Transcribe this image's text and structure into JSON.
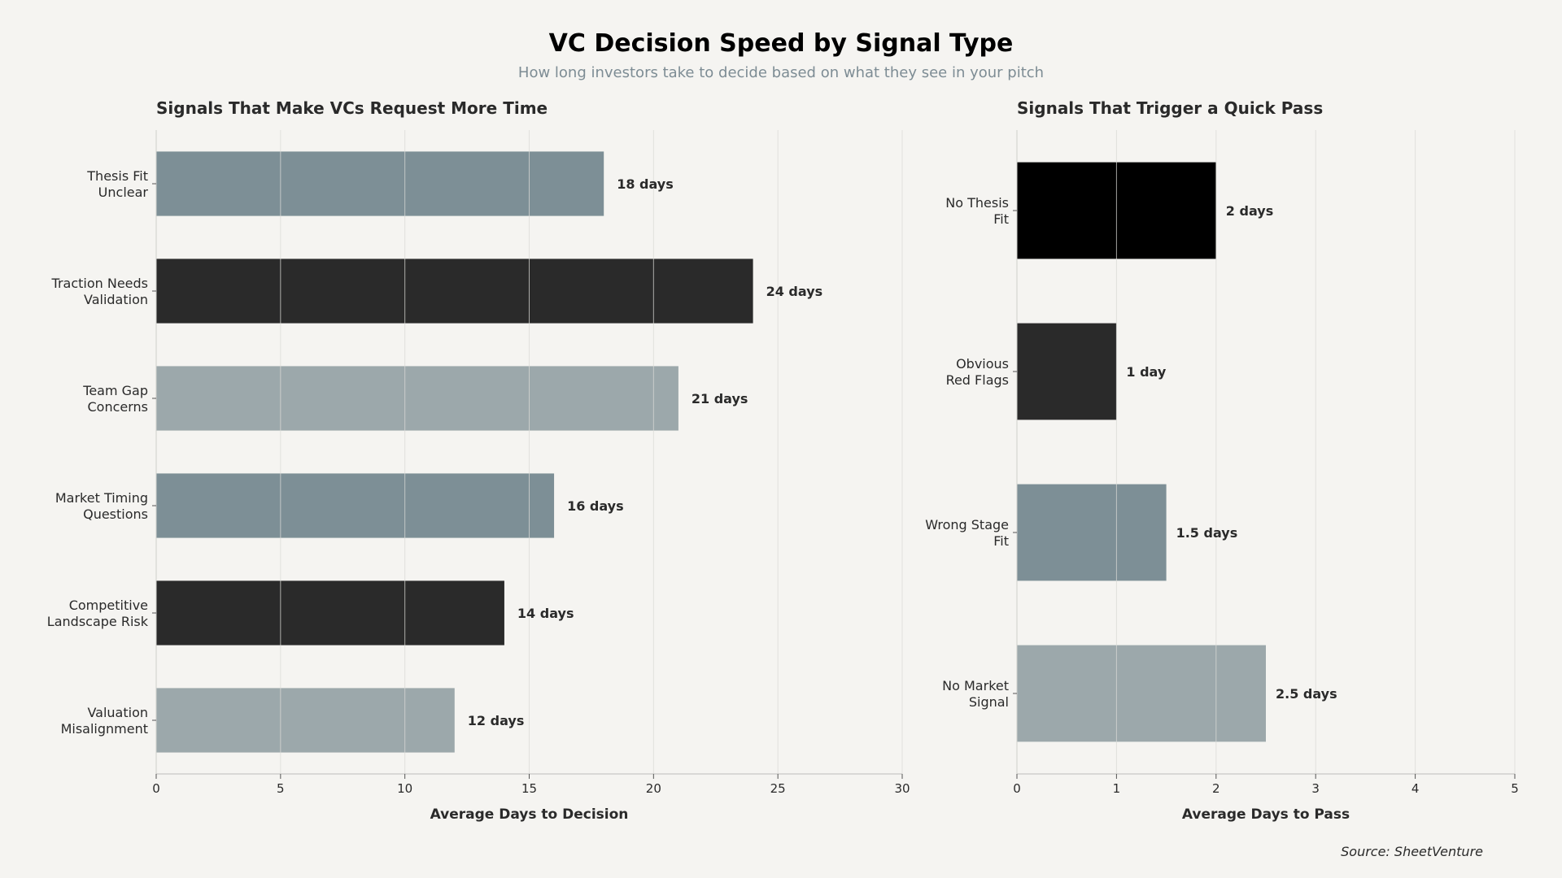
{
  "title": "VC Decision Speed by Signal Type",
  "subtitle": "How long investors take to decide based on what they see in your pitch",
  "source": "Source: SheetVenture",
  "colors": {
    "background": "#f5f4f1",
    "slate": "#7d8f96",
    "charcoal": "#2a2a2a",
    "light_slate": "#9ca8ab",
    "black": "#000000"
  },
  "chart_data": [
    {
      "type": "bar",
      "orientation": "horizontal",
      "title": "Signals That Make VCs Request More Time",
      "xlabel": "Average Days to Decision",
      "ylabel": "",
      "xlim": [
        0,
        30
      ],
      "xticks": [
        0,
        5,
        10,
        15,
        20,
        25,
        30
      ],
      "grid": true,
      "categories": [
        [
          "Thesis Fit",
          "Unclear"
        ],
        [
          "Traction Needs",
          "Validation"
        ],
        [
          "Team Gap",
          "Concerns"
        ],
        [
          "Market Timing",
          "Questions"
        ],
        [
          "Competitive",
          "Landscape Risk"
        ],
        [
          "Valuation",
          "Misalignment"
        ]
      ],
      "values": [
        18,
        24,
        21,
        16,
        14,
        12
      ],
      "value_labels": [
        "18 days",
        "24 days",
        "21 days",
        "16 days",
        "14 days",
        "12 days"
      ],
      "colors": [
        "#7d8f96",
        "#2a2a2a",
        "#9ca8ab",
        "#7d8f96",
        "#2a2a2a",
        "#9ca8ab"
      ]
    },
    {
      "type": "bar",
      "orientation": "horizontal",
      "title": "Signals That Trigger a Quick Pass",
      "xlabel": "Average Days to Pass",
      "ylabel": "",
      "xlim": [
        0,
        5
      ],
      "xticks": [
        0,
        1,
        2,
        3,
        4,
        5
      ],
      "grid": true,
      "categories": [
        [
          "No Thesis",
          "Fit"
        ],
        [
          "Obvious",
          "Red Flags"
        ],
        [
          "Wrong Stage",
          "Fit"
        ],
        [
          "No Market",
          "Signal"
        ]
      ],
      "values": [
        2,
        1,
        1.5,
        2.5
      ],
      "value_labels": [
        "2 days",
        "1 day",
        "1.5 days",
        "2.5 days"
      ],
      "colors": [
        "#000000",
        "#2a2a2a",
        "#7d8f96",
        "#9ca8ab"
      ]
    }
  ]
}
